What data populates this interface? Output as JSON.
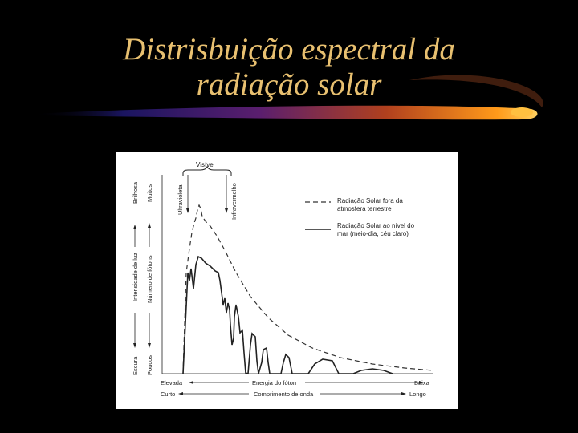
{
  "slide": {
    "title_line1": "Distrisbuição espectral da",
    "title_line2": "radiação solar",
    "title_color": "#e8c070"
  },
  "figure": {
    "visible_label": "Visível",
    "uv_label": "Ultravioleta",
    "ir_label": "Infravermelho",
    "y_axis": {
      "intensity_label": "Intensidade de luz",
      "intensity_top": "Brilhosa",
      "intensity_bottom": "Escura",
      "photons_label": "Número de fótons",
      "photons_top": "Muitos",
      "photons_bottom": "Poucos"
    },
    "legend": {
      "outside_line1": "Radiação Solar fora da",
      "outside_line2": "atmosfera terrestre",
      "sea_line1": "Radiação Solar ao nível do",
      "sea_line2": "mar (meio-dia, céu claro)"
    },
    "x_axis": {
      "energy_left": "Elevada",
      "energy_label": "Energia do fóton",
      "energy_right": "Baixa",
      "wave_left": "Curto",
      "wave_label": "Comprimento de onda",
      "wave_right": "Longo"
    }
  }
}
